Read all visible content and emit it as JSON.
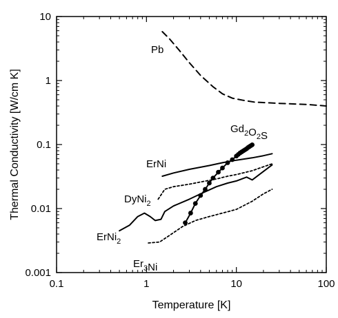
{
  "chart_data": {
    "type": "line",
    "xlabel": "Temperature [K]",
    "ylabel": "Thermal Conductivity [W/cm K]",
    "x_scale": "log",
    "y_scale": "log",
    "xlim": [
      0.1,
      100
    ],
    "ylim": [
      0.001,
      10
    ],
    "x_ticks": [
      "0.1",
      "1",
      "10",
      "100"
    ],
    "y_ticks": [
      "0.001",
      "0.01",
      "0.1",
      "1",
      "10"
    ],
    "grid": false,
    "legend": "none",
    "series": [
      {
        "name": "Pb",
        "label_parts": [
          {
            "t": "Pb",
            "sub": false
          }
        ],
        "style": "dashed",
        "points": [
          [
            1.5,
            5.8
          ],
          [
            1.8,
            4.5
          ],
          [
            2.3,
            3.0
          ],
          [
            3.0,
            1.9
          ],
          [
            4.0,
            1.2
          ],
          [
            5.5,
            0.8
          ],
          [
            7.0,
            0.62
          ],
          [
            9.0,
            0.53
          ],
          [
            12.0,
            0.49
          ],
          [
            16.0,
            0.46
          ],
          [
            22.0,
            0.45
          ],
          [
            30.0,
            0.44
          ],
          [
            45.0,
            0.43
          ],
          [
            65.0,
            0.42
          ],
          [
            100.0,
            0.4
          ]
        ]
      },
      {
        "name": "Gd2O2S",
        "label_parts": [
          {
            "t": "Gd",
            "sub": false
          },
          {
            "t": "2",
            "sub": true
          },
          {
            "t": "O",
            "sub": false
          },
          {
            "t": "2",
            "sub": true
          },
          {
            "t": "S",
            "sub": false
          }
        ],
        "style": "solid-markers",
        "points": [
          [
            2.7,
            0.006
          ],
          [
            3.1,
            0.0085
          ],
          [
            3.5,
            0.012
          ],
          [
            4.0,
            0.016
          ],
          [
            4.5,
            0.02
          ],
          [
            5.0,
            0.025
          ],
          [
            5.5,
            0.03
          ],
          [
            6.3,
            0.037
          ],
          [
            7.0,
            0.043
          ],
          [
            8.0,
            0.052
          ],
          [
            9.0,
            0.058
          ],
          [
            10.0,
            0.066
          ],
          [
            10.5,
            0.07
          ],
          [
            11.0,
            0.074
          ],
          [
            11.5,
            0.077
          ],
          [
            12.0,
            0.08
          ],
          [
            12.5,
            0.083
          ],
          [
            13.0,
            0.086
          ],
          [
            13.5,
            0.09
          ],
          [
            14.0,
            0.093
          ],
          [
            14.5,
            0.096
          ],
          [
            15.0,
            0.099
          ]
        ]
      },
      {
        "name": "ErNi",
        "label_parts": [
          {
            "t": "ErNi",
            "sub": false
          }
        ],
        "style": "solid",
        "points": [
          [
            1.5,
            0.032
          ],
          [
            2.0,
            0.036
          ],
          [
            3.0,
            0.041
          ],
          [
            5.0,
            0.047
          ],
          [
            7.0,
            0.052
          ],
          [
            10.0,
            0.057
          ],
          [
            15.0,
            0.062
          ],
          [
            20.0,
            0.067
          ],
          [
            25.0,
            0.072
          ]
        ]
      },
      {
        "name": "DyNi2",
        "label_parts": [
          {
            "t": "DyNi",
            "sub": false
          },
          {
            "t": "2",
            "sub": true
          }
        ],
        "style": "dotted",
        "points": [
          [
            1.35,
            0.014
          ],
          [
            1.6,
            0.02
          ],
          [
            2.0,
            0.022
          ],
          [
            3.0,
            0.024
          ],
          [
            4.0,
            0.026
          ],
          [
            6.0,
            0.029
          ],
          [
            8.0,
            0.032
          ],
          [
            10.0,
            0.034
          ],
          [
            15.0,
            0.039
          ],
          [
            20.0,
            0.045
          ],
          [
            25.0,
            0.05
          ]
        ]
      },
      {
        "name": "ErNi2",
        "label_parts": [
          {
            "t": "ErNi",
            "sub": false
          },
          {
            "t": "2",
            "sub": true
          }
        ],
        "style": "solid",
        "points": [
          [
            0.5,
            0.0045
          ],
          [
            0.65,
            0.0055
          ],
          [
            0.8,
            0.0075
          ],
          [
            0.95,
            0.0085
          ],
          [
            1.1,
            0.0075
          ],
          [
            1.25,
            0.0065
          ],
          [
            1.45,
            0.0068
          ],
          [
            1.6,
            0.009
          ],
          [
            2.0,
            0.011
          ],
          [
            3.0,
            0.014
          ],
          [
            4.0,
            0.017
          ],
          [
            6.0,
            0.022
          ],
          [
            8.0,
            0.025
          ],
          [
            10.0,
            0.027
          ],
          [
            13.0,
            0.031
          ],
          [
            15.0,
            0.028
          ],
          [
            20.0,
            0.038
          ],
          [
            25.0,
            0.048
          ]
        ]
      },
      {
        "name": "Er3Ni",
        "label_parts": [
          {
            "t": "Er",
            "sub": false
          },
          {
            "t": "3",
            "sub": true
          },
          {
            "t": "Ni",
            "sub": false
          }
        ],
        "style": "dotted",
        "points": [
          [
            1.05,
            0.0029
          ],
          [
            1.4,
            0.003
          ],
          [
            1.8,
            0.0038
          ],
          [
            2.5,
            0.0052
          ],
          [
            3.5,
            0.0065
          ],
          [
            5.0,
            0.0075
          ],
          [
            7.0,
            0.0085
          ],
          [
            10.0,
            0.0097
          ],
          [
            15.0,
            0.013
          ],
          [
            20.0,
            0.017
          ],
          [
            25.0,
            0.02
          ]
        ]
      }
    ]
  }
}
